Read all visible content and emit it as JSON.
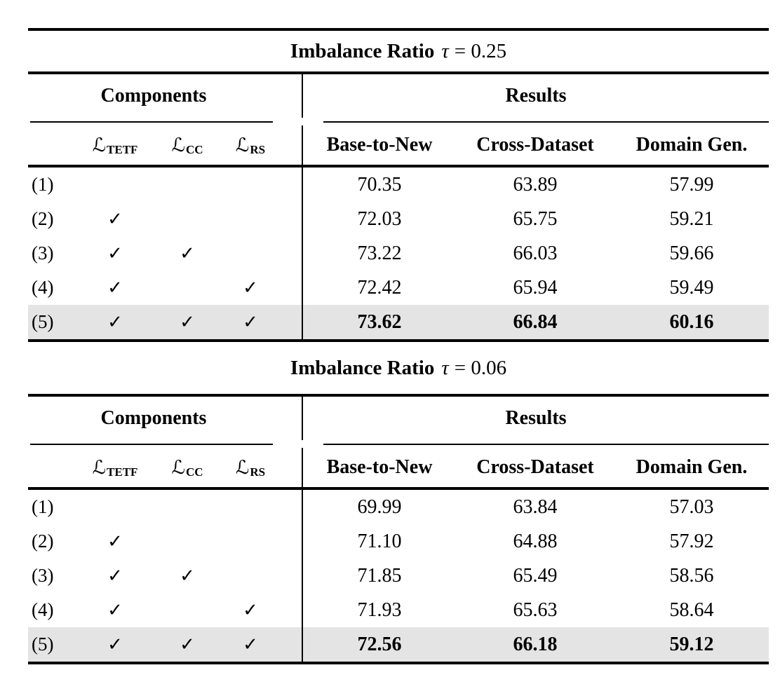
{
  "style": {
    "highlight_row_bg": "#e4e4e4",
    "rule_color": "#000000",
    "text_color": "#000000",
    "background": "#ffffff"
  },
  "tables": [
    {
      "title": {
        "prefix": "Imbalance Ratio",
        "symbol": "τ",
        "rest": "= 0.25"
      },
      "groups": {
        "components": "Components",
        "results": "Results"
      },
      "component_headers": [
        {
          "symbol": "ℒ",
          "sub": "TETF"
        },
        {
          "symbol": "ℒ",
          "sub": "CC"
        },
        {
          "symbol": "ℒ",
          "sub": "RS"
        }
      ],
      "result_headers": [
        "Base-to-New",
        "Cross-Dataset",
        "Domain Gen."
      ],
      "rows": [
        {
          "label": "(1)",
          "checks": [
            "",
            "",
            ""
          ],
          "values": [
            "70.35",
            "63.89",
            "57.99"
          ],
          "highlight": false
        },
        {
          "label": "(2)",
          "checks": [
            "✓",
            "",
            ""
          ],
          "values": [
            "72.03",
            "65.75",
            "59.21"
          ],
          "highlight": false
        },
        {
          "label": "(3)",
          "checks": [
            "✓",
            "✓",
            ""
          ],
          "values": [
            "73.22",
            "66.03",
            "59.66"
          ],
          "highlight": false
        },
        {
          "label": "(4)",
          "checks": [
            "✓",
            "",
            "✓"
          ],
          "values": [
            "72.42",
            "65.94",
            "59.49"
          ],
          "highlight": false
        },
        {
          "label": "(5)",
          "checks": [
            "✓",
            "✓",
            "✓"
          ],
          "values": [
            "73.62",
            "66.84",
            "60.16"
          ],
          "highlight": true
        }
      ]
    },
    {
      "title": {
        "prefix": "Imbalance Ratio",
        "symbol": "τ",
        "rest": "= 0.06"
      },
      "groups": {
        "components": "Components",
        "results": "Results"
      },
      "component_headers": [
        {
          "symbol": "ℒ",
          "sub": "TETF"
        },
        {
          "symbol": "ℒ",
          "sub": "CC"
        },
        {
          "symbol": "ℒ",
          "sub": "RS"
        }
      ],
      "result_headers": [
        "Base-to-New",
        "Cross-Dataset",
        "Domain Gen."
      ],
      "rows": [
        {
          "label": "(1)",
          "checks": [
            "",
            "",
            ""
          ],
          "values": [
            "69.99",
            "63.84",
            "57.03"
          ],
          "highlight": false
        },
        {
          "label": "(2)",
          "checks": [
            "✓",
            "",
            ""
          ],
          "values": [
            "71.10",
            "64.88",
            "57.92"
          ],
          "highlight": false
        },
        {
          "label": "(3)",
          "checks": [
            "✓",
            "✓",
            ""
          ],
          "values": [
            "71.85",
            "65.49",
            "58.56"
          ],
          "highlight": false
        },
        {
          "label": "(4)",
          "checks": [
            "✓",
            "",
            "✓"
          ],
          "values": [
            "71.93",
            "65.63",
            "58.64"
          ],
          "highlight": false
        },
        {
          "label": "(5)",
          "checks": [
            "✓",
            "✓",
            "✓"
          ],
          "values": [
            "72.56",
            "66.18",
            "59.12"
          ],
          "highlight": true
        }
      ]
    }
  ]
}
